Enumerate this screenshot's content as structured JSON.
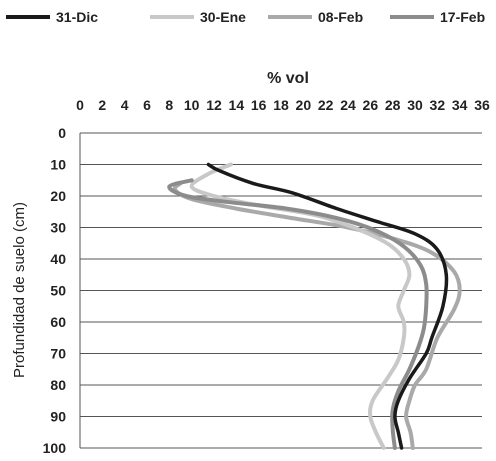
{
  "chart_data": {
    "type": "line",
    "orientation": "x-horizontal-top, y-depth-downward",
    "title": "",
    "xlabel": "% vol",
    "ylabel": "Profundidad de suelo (cm)",
    "xlim": [
      0,
      36
    ],
    "ylim": [
      0,
      100
    ],
    "x_ticks": [
      0,
      2,
      4,
      6,
      8,
      10,
      12,
      14,
      16,
      18,
      20,
      22,
      24,
      26,
      28,
      30,
      32,
      34,
      36
    ],
    "y_ticks": [
      0,
      10,
      20,
      30,
      40,
      50,
      60,
      70,
      80,
      90,
      100
    ],
    "x_axis_position": "top",
    "y_reversed": true,
    "grid": "horizontal",
    "legend_position": "top",
    "series": [
      {
        "name": "31-Dic",
        "color": "#1a1a1a",
        "points": [
          [
            11.5,
            10
          ],
          [
            12.5,
            12
          ],
          [
            15.5,
            16
          ],
          [
            19,
            19
          ],
          [
            23,
            24
          ],
          [
            26.5,
            28
          ],
          [
            30,
            32
          ],
          [
            32,
            37
          ],
          [
            32.8,
            45
          ],
          [
            32.5,
            55
          ],
          [
            31.5,
            65
          ],
          [
            31,
            70
          ],
          [
            29.5,
            78
          ],
          [
            28.5,
            85
          ],
          [
            28.2,
            90
          ],
          [
            28.5,
            95
          ],
          [
            28.8,
            100
          ]
        ]
      },
      {
        "name": "30-Ene",
        "color": "#c8c8c8",
        "points": [
          [
            13.5,
            10
          ],
          [
            11.5,
            13
          ],
          [
            10,
            17
          ],
          [
            12,
            20
          ],
          [
            16,
            23
          ],
          [
            21,
            26
          ],
          [
            24.5,
            30
          ],
          [
            27.5,
            35
          ],
          [
            29,
            40
          ],
          [
            29.5,
            45
          ],
          [
            29,
            50
          ],
          [
            28.5,
            55
          ],
          [
            29,
            60
          ],
          [
            29,
            65
          ],
          [
            28.5,
            72
          ],
          [
            27.5,
            78
          ],
          [
            26.2,
            85
          ],
          [
            26,
            90
          ],
          [
            26.5,
            95
          ],
          [
            27.2,
            100
          ]
        ]
      },
      {
        "name": "08-Feb",
        "color": "#a9a9a9",
        "points": [
          [
            9,
            16
          ],
          [
            8.5,
            18
          ],
          [
            10,
            21
          ],
          [
            14,
            24
          ],
          [
            19,
            27
          ],
          [
            24,
            30
          ],
          [
            28.5,
            34
          ],
          [
            31.5,
            38
          ],
          [
            33.5,
            44
          ],
          [
            34,
            50
          ],
          [
            33.5,
            56
          ],
          [
            32,
            65
          ],
          [
            31,
            75
          ],
          [
            30,
            80
          ],
          [
            29.5,
            85
          ],
          [
            29.2,
            90
          ],
          [
            29.6,
            95
          ],
          [
            29.8,
            100
          ]
        ]
      },
      {
        "name": "17-Feb",
        "color": "#8c8c8c",
        "points": [
          [
            10,
            15
          ],
          [
            8,
            17
          ],
          [
            9.5,
            20
          ],
          [
            13.5,
            22
          ],
          [
            18.5,
            24
          ],
          [
            23,
            27
          ],
          [
            26.5,
            31
          ],
          [
            29,
            36
          ],
          [
            30.5,
            42
          ],
          [
            31,
            48
          ],
          [
            31,
            55
          ],
          [
            30.8,
            62
          ],
          [
            30.3,
            68
          ],
          [
            29.5,
            75
          ],
          [
            28.5,
            82
          ],
          [
            28,
            88
          ],
          [
            28,
            94
          ],
          [
            28.2,
            100
          ]
        ]
      }
    ]
  }
}
